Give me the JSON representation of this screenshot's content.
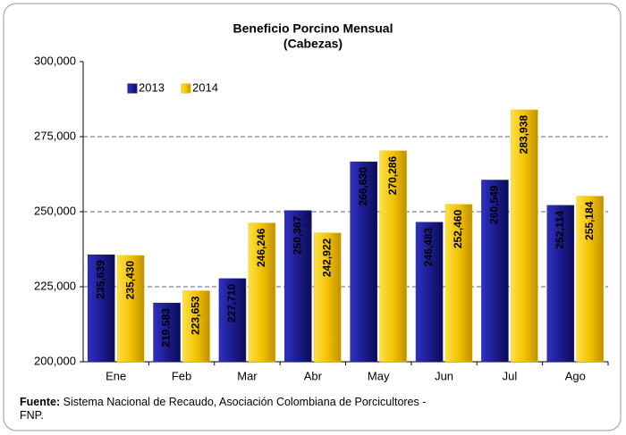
{
  "chart_data": {
    "type": "bar",
    "title": "Beneficio Porcino Mensual",
    "subtitle": "(Cabezas)",
    "categories": [
      "Ene",
      "Feb",
      "Mar",
      "Abr",
      "May",
      "Jun",
      "Jul",
      "Ago"
    ],
    "series": [
      {
        "name": "2013",
        "color": "#1c1c8f",
        "values": [
          235639,
          219583,
          227710,
          250367,
          266630,
          246483,
          260549,
          252114
        ],
        "value_labels": [
          "235,639",
          "219,583",
          "227,710",
          "250,367",
          "266,630",
          "246,483",
          "260,549",
          "252,114"
        ]
      },
      {
        "name": "2014",
        "color": "#f2c200",
        "values": [
          235430,
          223653,
          246246,
          242922,
          270286,
          252460,
          283938,
          255184
        ],
        "value_labels": [
          "235,430",
          "223,653",
          "246,246",
          "242,922",
          "270,286",
          "252,460",
          "283,938",
          "255,184"
        ]
      }
    ],
    "ylim": [
      200000,
      300000
    ],
    "yticks": [
      {
        "value": 200000,
        "label": "200,000"
      },
      {
        "value": 225000,
        "label": "225,000"
      },
      {
        "value": 250000,
        "label": "250,000"
      },
      {
        "value": 275000,
        "label": "275,000"
      },
      {
        "value": 300000,
        "label": "300,000"
      }
    ],
    "grid": true,
    "legend": "top-left",
    "source_label": "Fuente:",
    "source_text": "Sistema Nacional de Recaudo, Asociación Colombiana de Porcicultores - FNP."
  }
}
